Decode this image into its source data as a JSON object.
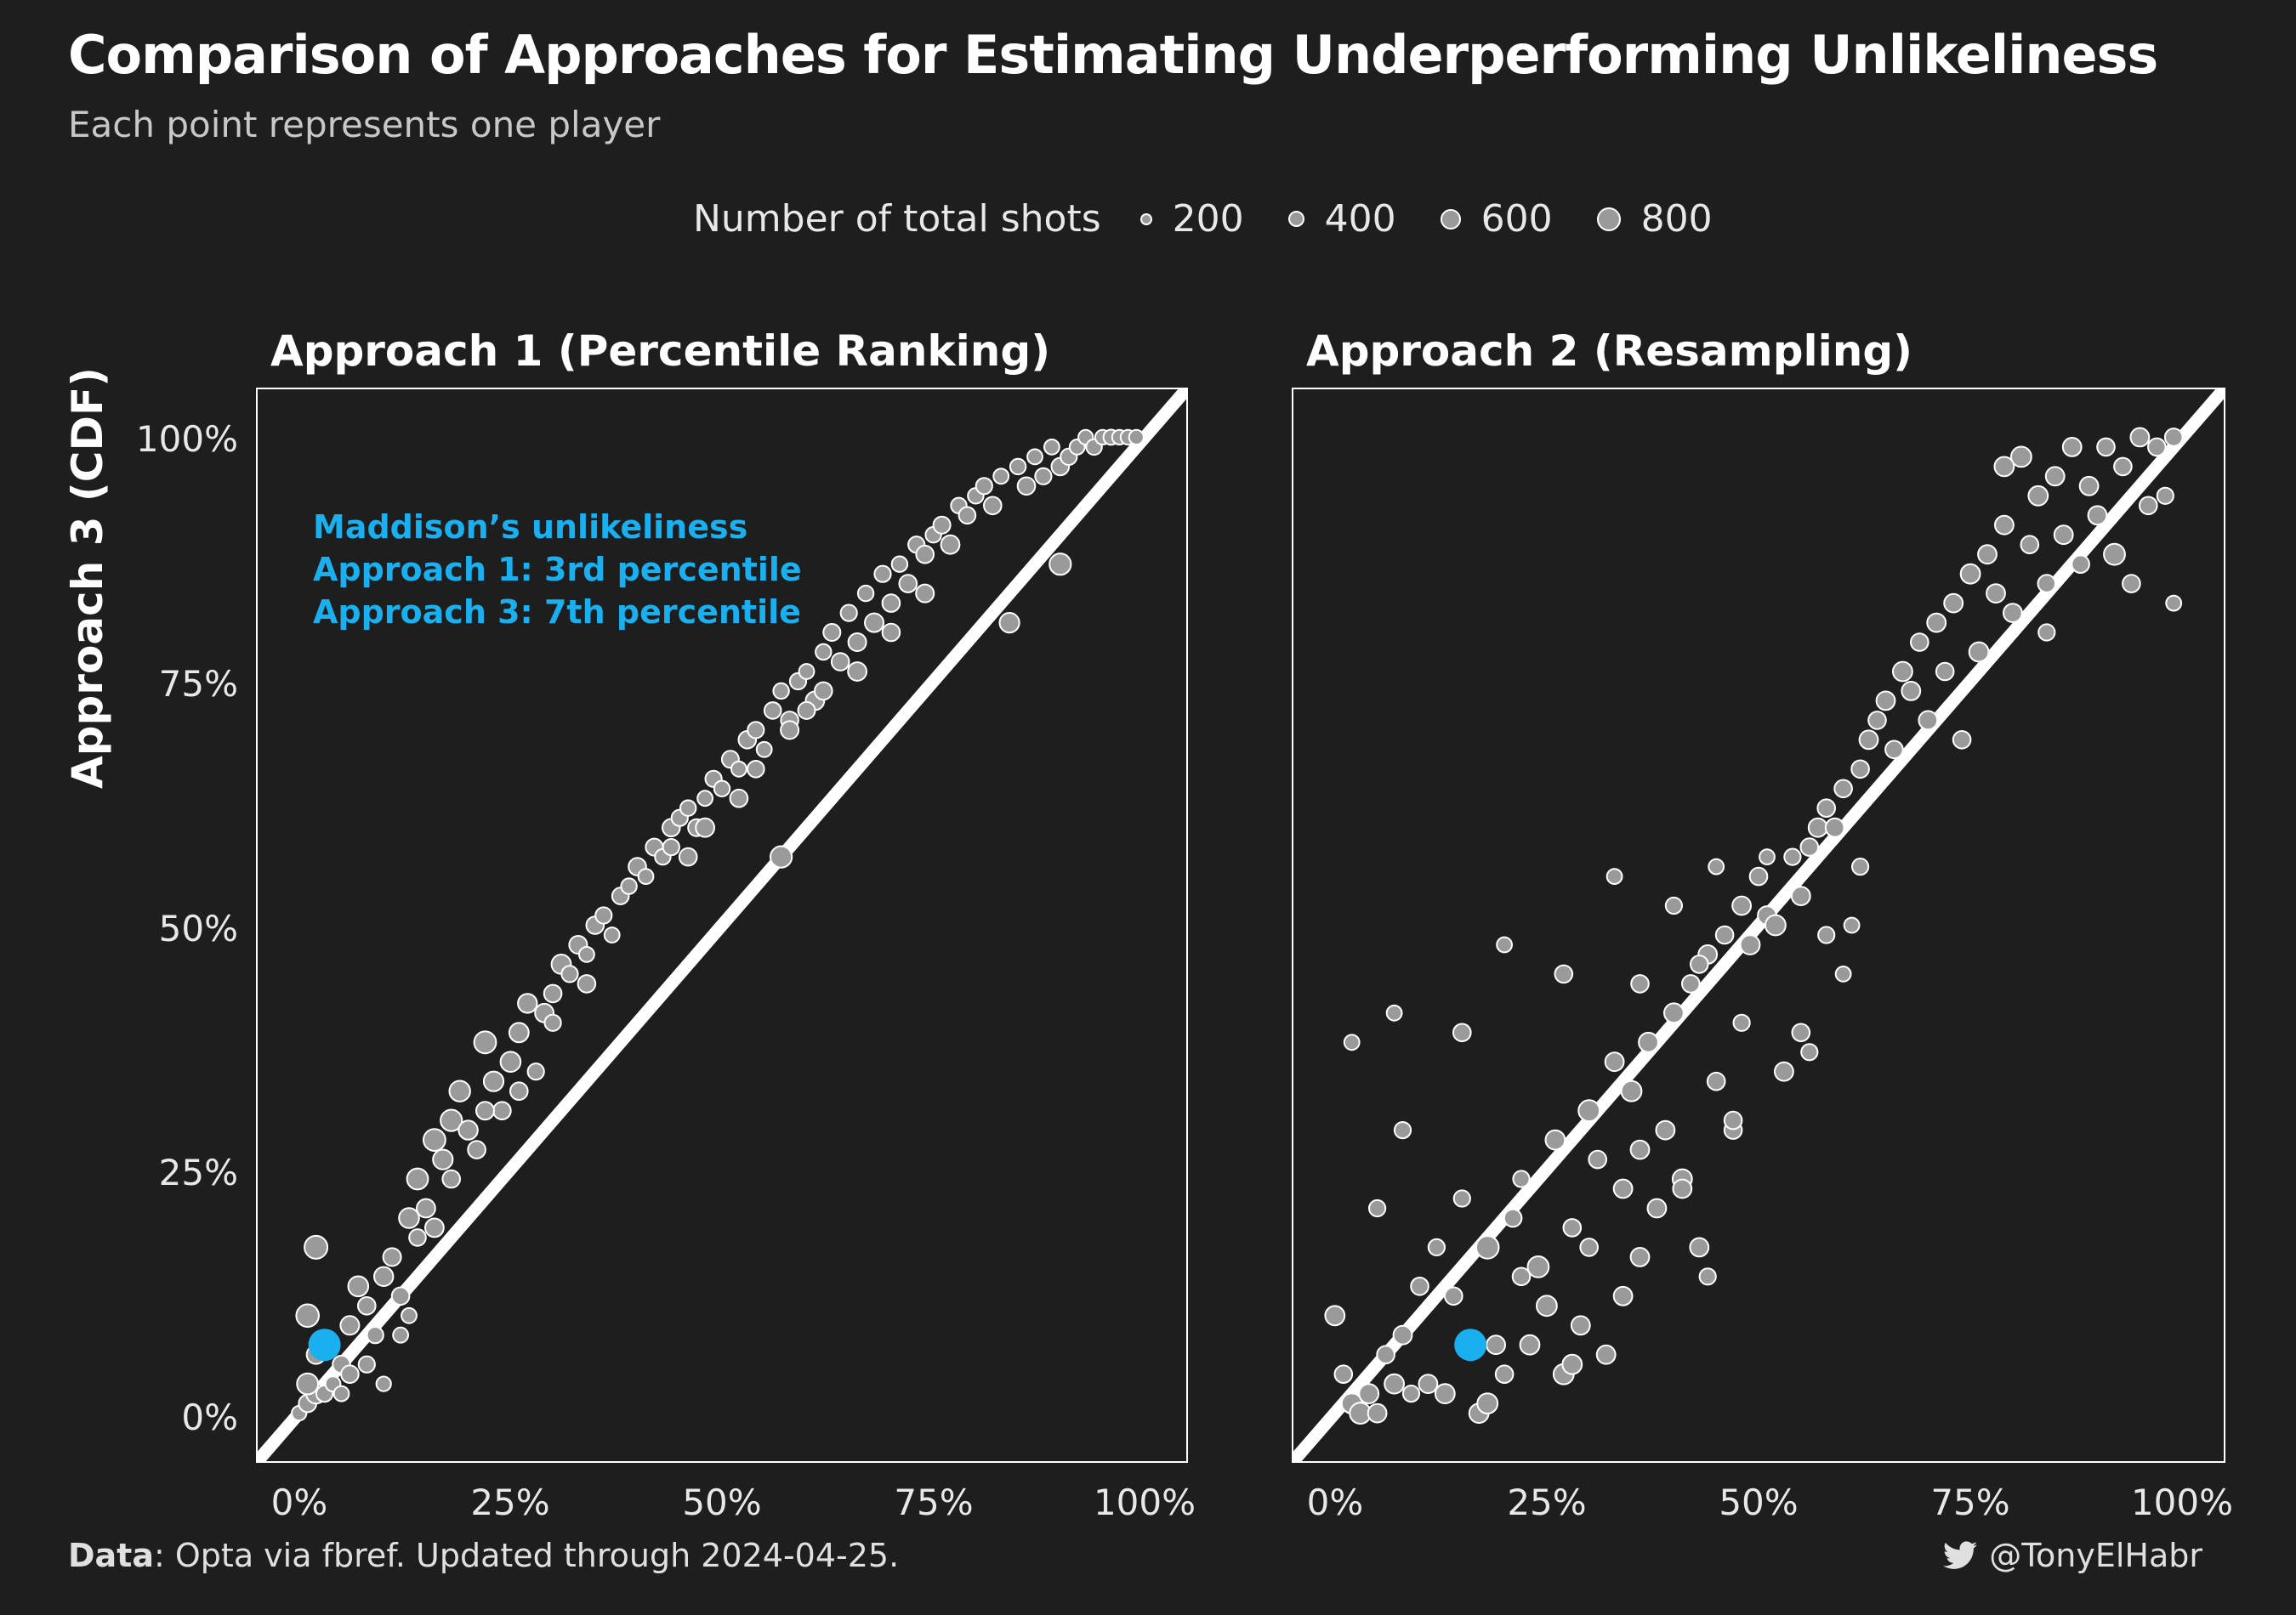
{
  "header": {
    "title": "Comparison of Approaches for Estimating Underperforming Unlikeliness",
    "subtitle": "Each point represents one player"
  },
  "legend": {
    "title": "Number of total shots",
    "items": [
      {
        "label": "200",
        "value": 200
      },
      {
        "label": "400",
        "value": 400
      },
      {
        "label": "600",
        "value": 600
      },
      {
        "label": "800",
        "value": 800
      }
    ]
  },
  "footer": {
    "caption_bold": "Data",
    "caption_rest": ": Opta via fbref. Updated through 2024-04-25.",
    "handle": "@TonyElHabr",
    "handle_icon": "twitter-bird-icon"
  },
  "colors": {
    "background": "#1e1e1e",
    "point_fill": "#9a9a9a",
    "point_stroke": "#ffffff",
    "highlight": "#1ab0f0",
    "reference_line": "#ffffff"
  },
  "annotation": {
    "line1": "Maddison’s unlikeliness",
    "line2": "Approach 1: 3rd percentile",
    "line3": "Approach 3: 7th percentile"
  },
  "chart_data": [
    {
      "type": "scatter",
      "title": "Approach 1 (Percentile Ranking)",
      "ylabel": "Approach 3 (CDF)",
      "xlim": [
        -0.05,
        1.05
      ],
      "ylim": [
        -0.05,
        1.05
      ],
      "x_ticks": [
        "0%",
        "25%",
        "50%",
        "75%",
        "100%"
      ],
      "y_ticks": [
        "0%",
        "25%",
        "50%",
        "75%",
        "100%"
      ],
      "reference": "identity line y = x",
      "highlight": {
        "x": 0.03,
        "y": 0.07,
        "label": "Maddison"
      },
      "points": [
        [
          0.0,
          0.0,
          180
        ],
        [
          0.01,
          0.01,
          300
        ],
        [
          0.02,
          0.02,
          420
        ],
        [
          0.01,
          0.03,
          500
        ],
        [
          0.03,
          0.02,
          250
        ],
        [
          0.04,
          0.03,
          200
        ],
        [
          0.02,
          0.06,
          350
        ],
        [
          0.01,
          0.1,
          600
        ],
        [
          0.02,
          0.17,
          620
        ],
        [
          0.05,
          0.05,
          300
        ],
        [
          0.06,
          0.09,
          360
        ],
        [
          0.07,
          0.13,
          440
        ],
        [
          0.08,
          0.11,
          300
        ],
        [
          0.09,
          0.08,
          250
        ],
        [
          0.1,
          0.14,
          380
        ],
        [
          0.11,
          0.16,
          320
        ],
        [
          0.1,
          0.03,
          180
        ],
        [
          0.12,
          0.12,
          300
        ],
        [
          0.13,
          0.2,
          440
        ],
        [
          0.14,
          0.24,
          500
        ],
        [
          0.13,
          0.1,
          200
        ],
        [
          0.15,
          0.21,
          350
        ],
        [
          0.16,
          0.28,
          560
        ],
        [
          0.17,
          0.26,
          420
        ],
        [
          0.18,
          0.3,
          520
        ],
        [
          0.19,
          0.33,
          480
        ],
        [
          0.2,
          0.29,
          380
        ],
        [
          0.21,
          0.27,
          300
        ],
        [
          0.22,
          0.38,
          560
        ],
        [
          0.23,
          0.34,
          420
        ],
        [
          0.24,
          0.31,
          300
        ],
        [
          0.25,
          0.36,
          440
        ],
        [
          0.26,
          0.39,
          400
        ],
        [
          0.27,
          0.42,
          380
        ],
        [
          0.28,
          0.35,
          250
        ],
        [
          0.29,
          0.41,
          350
        ],
        [
          0.3,
          0.43,
          300
        ],
        [
          0.31,
          0.46,
          400
        ],
        [
          0.32,
          0.45,
          250
        ],
        [
          0.33,
          0.48,
          320
        ],
        [
          0.34,
          0.47,
          200
        ],
        [
          0.35,
          0.5,
          300
        ],
        [
          0.36,
          0.51,
          250
        ],
        [
          0.37,
          0.49,
          200
        ],
        [
          0.38,
          0.53,
          260
        ],
        [
          0.39,
          0.54,
          220
        ],
        [
          0.4,
          0.56,
          300
        ],
        [
          0.41,
          0.55,
          200
        ],
        [
          0.42,
          0.58,
          280
        ],
        [
          0.43,
          0.57,
          220
        ],
        [
          0.44,
          0.6,
          300
        ],
        [
          0.45,
          0.61,
          250
        ],
        [
          0.46,
          0.62,
          220
        ],
        [
          0.47,
          0.6,
          280
        ],
        [
          0.48,
          0.63,
          200
        ],
        [
          0.49,
          0.65,
          250
        ],
        [
          0.5,
          0.64,
          220
        ],
        [
          0.51,
          0.67,
          280
        ],
        [
          0.52,
          0.66,
          200
        ],
        [
          0.53,
          0.69,
          300
        ],
        [
          0.54,
          0.7,
          250
        ],
        [
          0.55,
          0.68,
          200
        ],
        [
          0.56,
          0.72,
          260
        ],
        [
          0.57,
          0.57,
          520
        ],
        [
          0.57,
          0.74,
          220
        ],
        [
          0.58,
          0.71,
          300
        ],
        [
          0.59,
          0.75,
          250
        ],
        [
          0.6,
          0.76,
          200
        ],
        [
          0.61,
          0.73,
          350
        ],
        [
          0.62,
          0.78,
          220
        ],
        [
          0.63,
          0.8,
          280
        ],
        [
          0.64,
          0.77,
          300
        ],
        [
          0.65,
          0.82,
          250
        ],
        [
          0.66,
          0.79,
          320
        ],
        [
          0.67,
          0.84,
          220
        ],
        [
          0.68,
          0.81,
          360
        ],
        [
          0.69,
          0.86,
          250
        ],
        [
          0.7,
          0.83,
          300
        ],
        [
          0.71,
          0.87,
          220
        ],
        [
          0.72,
          0.85,
          300
        ],
        [
          0.73,
          0.89,
          250
        ],
        [
          0.74,
          0.88,
          300
        ],
        [
          0.75,
          0.9,
          220
        ],
        [
          0.76,
          0.91,
          280
        ],
        [
          0.77,
          0.89,
          350
        ],
        [
          0.78,
          0.93,
          220
        ],
        [
          0.79,
          0.92,
          260
        ],
        [
          0.8,
          0.94,
          220
        ],
        [
          0.81,
          0.95,
          250
        ],
        [
          0.82,
          0.93,
          300
        ],
        [
          0.83,
          0.96,
          200
        ],
        [
          0.84,
          0.81,
          420
        ],
        [
          0.85,
          0.97,
          220
        ],
        [
          0.86,
          0.95,
          300
        ],
        [
          0.87,
          0.98,
          200
        ],
        [
          0.88,
          0.96,
          250
        ],
        [
          0.89,
          0.99,
          200
        ],
        [
          0.9,
          0.87,
          520
        ],
        [
          0.9,
          0.97,
          300
        ],
        [
          0.91,
          0.98,
          250
        ],
        [
          0.92,
          0.99,
          200
        ],
        [
          0.93,
          1.0,
          180
        ],
        [
          0.94,
          0.99,
          220
        ],
        [
          0.95,
          1.0,
          180
        ],
        [
          0.96,
          1.0,
          200
        ],
        [
          0.97,
          1.0,
          180
        ],
        [
          0.98,
          1.0,
          180
        ],
        [
          0.99,
          1.0,
          180
        ],
        [
          0.44,
          0.58,
          250
        ],
        [
          0.46,
          0.57,
          300
        ],
        [
          0.48,
          0.6,
          350
        ],
        [
          0.52,
          0.63,
          300
        ],
        [
          0.54,
          0.66,
          260
        ],
        [
          0.58,
          0.7,
          320
        ],
        [
          0.6,
          0.72,
          280
        ],
        [
          0.62,
          0.74,
          300
        ],
        [
          0.66,
          0.76,
          350
        ],
        [
          0.7,
          0.8,
          300
        ],
        [
          0.74,
          0.84,
          320
        ],
        [
          0.34,
          0.44,
          300
        ],
        [
          0.3,
          0.4,
          250
        ],
        [
          0.26,
          0.33,
          300
        ],
        [
          0.22,
          0.31,
          320
        ],
        [
          0.18,
          0.24,
          300
        ],
        [
          0.14,
          0.18,
          260
        ],
        [
          0.12,
          0.08,
          200
        ],
        [
          0.08,
          0.05,
          250
        ],
        [
          0.05,
          0.02,
          200
        ],
        [
          0.06,
          0.04,
          300
        ],
        [
          0.16,
          0.19,
          350
        ]
      ]
    },
    {
      "type": "scatter",
      "title": "Approach 2 (Resampling)",
      "ylabel": "",
      "xlim": [
        -0.05,
        1.05
      ],
      "ylim": [
        -0.05,
        1.05
      ],
      "x_ticks": [
        "0%",
        "25%",
        "50%",
        "75%",
        "100%"
      ],
      "y_ticks": [
        "0%",
        "25%",
        "50%",
        "75%",
        "100%"
      ],
      "reference": "identity line y = x",
      "highlight": {
        "x": 0.16,
        "y": 0.07,
        "label": "Maddison"
      },
      "points": [
        [
          0.0,
          0.1,
          400
        ],
        [
          0.01,
          0.04,
          300
        ],
        [
          0.02,
          0.01,
          450
        ],
        [
          0.03,
          0.0,
          500
        ],
        [
          0.04,
          0.02,
          400
        ],
        [
          0.05,
          0.0,
          350
        ],
        [
          0.06,
          0.06,
          300
        ],
        [
          0.07,
          0.03,
          400
        ],
        [
          0.08,
          0.08,
          350
        ],
        [
          0.09,
          0.02,
          250
        ],
        [
          0.1,
          0.13,
          300
        ],
        [
          0.11,
          0.03,
          350
        ],
        [
          0.12,
          0.17,
          250
        ],
        [
          0.13,
          0.02,
          400
        ],
        [
          0.14,
          0.12,
          300
        ],
        [
          0.15,
          0.22,
          250
        ],
        [
          0.17,
          0.0,
          400
        ],
        [
          0.18,
          0.01,
          450
        ],
        [
          0.18,
          0.17,
          600
        ],
        [
          0.19,
          0.07,
          350
        ],
        [
          0.2,
          0.04,
          300
        ],
        [
          0.21,
          0.2,
          300
        ],
        [
          0.22,
          0.24,
          250
        ],
        [
          0.23,
          0.07,
          400
        ],
        [
          0.24,
          0.15,
          500
        ],
        [
          0.25,
          0.11,
          450
        ],
        [
          0.26,
          0.28,
          400
        ],
        [
          0.27,
          0.04,
          450
        ],
        [
          0.28,
          0.19,
          300
        ],
        [
          0.29,
          0.09,
          350
        ],
        [
          0.3,
          0.31,
          500
        ],
        [
          0.31,
          0.26,
          300
        ],
        [
          0.32,
          0.06,
          350
        ],
        [
          0.33,
          0.36,
          350
        ],
        [
          0.34,
          0.23,
          350
        ],
        [
          0.35,
          0.33,
          450
        ],
        [
          0.36,
          0.27,
          350
        ],
        [
          0.37,
          0.38,
          400
        ],
        [
          0.38,
          0.21,
          350
        ],
        [
          0.39,
          0.29,
          350
        ],
        [
          0.4,
          0.41,
          400
        ],
        [
          0.41,
          0.24,
          400
        ],
        [
          0.42,
          0.44,
          300
        ],
        [
          0.43,
          0.17,
          350
        ],
        [
          0.44,
          0.47,
          350
        ],
        [
          0.45,
          0.34,
          300
        ],
        [
          0.46,
          0.49,
          300
        ],
        [
          0.47,
          0.29,
          300
        ],
        [
          0.48,
          0.52,
          350
        ],
        [
          0.49,
          0.48,
          400
        ],
        [
          0.5,
          0.55,
          300
        ],
        [
          0.51,
          0.51,
          350
        ],
        [
          0.52,
          0.5,
          450
        ],
        [
          0.53,
          0.35,
          350
        ],
        [
          0.54,
          0.57,
          250
        ],
        [
          0.55,
          0.53,
          350
        ],
        [
          0.56,
          0.58,
          300
        ],
        [
          0.57,
          0.6,
          350
        ],
        [
          0.58,
          0.62,
          300
        ],
        [
          0.59,
          0.6,
          350
        ],
        [
          0.6,
          0.64,
          300
        ],
        [
          0.61,
          0.5,
          200
        ],
        [
          0.62,
          0.66,
          300
        ],
        [
          0.63,
          0.69,
          350
        ],
        [
          0.64,
          0.71,
          300
        ],
        [
          0.65,
          0.73,
          350
        ],
        [
          0.66,
          0.68,
          300
        ],
        [
          0.67,
          0.76,
          400
        ],
        [
          0.68,
          0.74,
          350
        ],
        [
          0.69,
          0.79,
          300
        ],
        [
          0.7,
          0.71,
          350
        ],
        [
          0.71,
          0.81,
          350
        ],
        [
          0.72,
          0.76,
          300
        ],
        [
          0.73,
          0.83,
          350
        ],
        [
          0.74,
          0.69,
          300
        ],
        [
          0.75,
          0.86,
          400
        ],
        [
          0.76,
          0.78,
          400
        ],
        [
          0.77,
          0.88,
          350
        ],
        [
          0.78,
          0.84,
          350
        ],
        [
          0.79,
          0.91,
          350
        ],
        [
          0.8,
          0.82,
          350
        ],
        [
          0.81,
          0.98,
          450
        ],
        [
          0.82,
          0.89,
          300
        ],
        [
          0.83,
          0.94,
          400
        ],
        [
          0.84,
          0.85,
          300
        ],
        [
          0.85,
          0.96,
          350
        ],
        [
          0.86,
          0.9,
          350
        ],
        [
          0.87,
          0.99,
          350
        ],
        [
          0.88,
          0.87,
          300
        ],
        [
          0.89,
          0.95,
          350
        ],
        [
          0.9,
          0.92,
          350
        ],
        [
          0.91,
          0.99,
          300
        ],
        [
          0.92,
          0.88,
          500
        ],
        [
          0.93,
          0.97,
          300
        ],
        [
          0.94,
          0.85,
          300
        ],
        [
          0.95,
          1.0,
          350
        ],
        [
          0.96,
          0.93,
          300
        ],
        [
          0.97,
          0.99,
          300
        ],
        [
          0.98,
          0.94,
          250
        ],
        [
          0.99,
          1.0,
          300
        ],
        [
          0.99,
          0.83,
          200
        ],
        [
          0.79,
          0.97,
          400
        ],
        [
          0.84,
          0.8,
          250
        ],
        [
          0.05,
          0.21,
          250
        ],
        [
          0.02,
          0.38,
          200
        ],
        [
          0.07,
          0.41,
          200
        ],
        [
          0.08,
          0.29,
          250
        ],
        [
          0.15,
          0.39,
          300
        ],
        [
          0.2,
          0.48,
          200
        ],
        [
          0.27,
          0.45,
          300
        ],
        [
          0.33,
          0.55,
          200
        ],
        [
          0.36,
          0.44,
          300
        ],
        [
          0.4,
          0.52,
          250
        ],
        [
          0.43,
          0.46,
          300
        ],
        [
          0.45,
          0.56,
          200
        ],
        [
          0.48,
          0.4,
          250
        ],
        [
          0.51,
          0.57,
          200
        ],
        [
          0.56,
          0.37,
          250
        ],
        [
          0.6,
          0.45,
          200
        ],
        [
          0.62,
          0.56,
          250
        ],
        [
          0.3,
          0.17,
          300
        ],
        [
          0.22,
          0.14,
          300
        ],
        [
          0.34,
          0.12,
          350
        ],
        [
          0.28,
          0.05,
          400
        ],
        [
          0.36,
          0.16,
          350
        ],
        [
          0.41,
          0.23,
          350
        ],
        [
          0.44,
          0.14,
          250
        ],
        [
          0.47,
          0.3,
          300
        ],
        [
          0.55,
          0.39,
          300
        ],
        [
          0.58,
          0.49,
          250
        ]
      ]
    }
  ]
}
